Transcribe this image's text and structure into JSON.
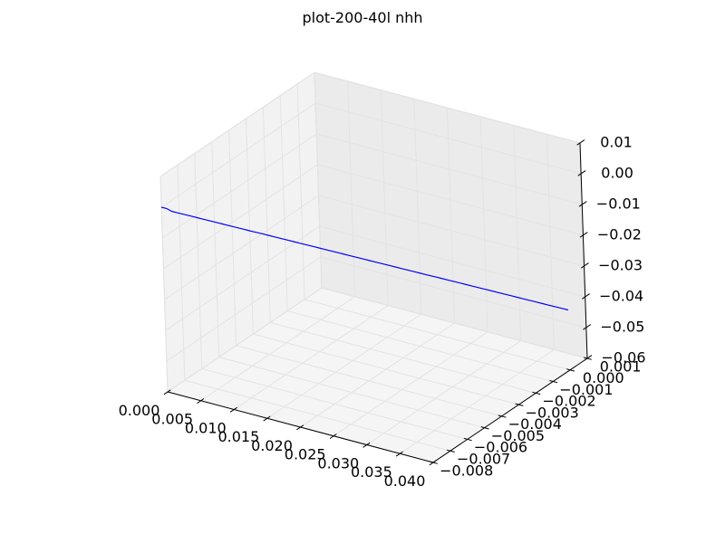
{
  "chart_data": {
    "type": "line3d",
    "title": "plot-200-40l nhh",
    "xlabel": "",
    "ylabel": "",
    "zlabel": "",
    "grid": true,
    "xlim": [
      0.0,
      0.04
    ],
    "ylim": [
      -0.008,
      0.001
    ],
    "zlim": [
      -0.06,
      0.01
    ],
    "x_ticks": [
      0.0,
      0.005,
      0.01,
      0.015,
      0.02,
      0.025,
      0.03,
      0.035,
      0.04
    ],
    "x_tick_labels": [
      "0.000",
      "0.005",
      "0.010",
      "0.015",
      "0.020",
      "0.025",
      "0.030",
      "0.035",
      "0.040"
    ],
    "y_ticks": [
      -0.008,
      -0.007,
      -0.006,
      -0.005,
      -0.004,
      -0.003,
      -0.002,
      -0.001,
      0.0,
      0.001
    ],
    "y_tick_labels": [
      "−0.008",
      "−0.007",
      "−0.006",
      "−0.005",
      "−0.004",
      "−0.003",
      "−0.002",
      "−0.001",
      "0.000",
      "0.001"
    ],
    "z_ticks": [
      -0.06,
      -0.05,
      -0.04,
      -0.03,
      -0.02,
      -0.01,
      0.0,
      0.01
    ],
    "z_tick_labels": [
      "−0.06",
      "−0.05",
      "−0.04",
      "−0.03",
      "−0.02",
      "−0.01",
      "0.00",
      "0.01"
    ],
    "series": [
      {
        "color": "#0000ff",
        "x": [
          0.0,
          0.0005,
          0.001,
          0.0015,
          0.002,
          0.0025,
          0.003,
          0.0035,
          0.004,
          0.0045,
          0.005,
          0.0055,
          0.006,
          0.0065,
          0.007,
          0.0075,
          0.008,
          0.0085,
          0.009,
          0.0095,
          0.01,
          0.0105,
          0.011,
          0.0115,
          0.012,
          0.0125,
          0.013,
          0.0135,
          0.014,
          0.0145,
          0.015,
          0.0155,
          0.016,
          0.0165,
          0.017,
          0.0175,
          0.018,
          0.0185,
          0.019,
          0.0195,
          0.02,
          0.0205,
          0.021,
          0.0215,
          0.022,
          0.0225,
          0.023,
          0.0235,
          0.024,
          0.0245,
          0.025,
          0.0255,
          0.026,
          0.0265,
          0.027,
          0.0275,
          0.028,
          0.0285,
          0.029,
          0.0295,
          0.03,
          0.0305,
          0.031,
          0.0315,
          0.032,
          0.0325,
          0.033,
          0.0335,
          0.034,
          0.0345,
          0.035,
          0.0355,
          0.036,
          0.0365,
          0.037,
          0.0375,
          0.038,
          0.0385,
          0.039,
          0.0395,
          0.04
        ],
        "y": [
          -0.008,
          -0.0079,
          -0.0078,
          -0.0077,
          -0.0076,
          -0.0075,
          -0.0074,
          -0.0073,
          -0.0072,
          -0.0071,
          -0.007,
          -0.0069,
          -0.0068,
          -0.0067,
          -0.0066,
          -0.0065,
          -0.0064,
          -0.0063,
          -0.0062,
          -0.0061,
          -0.006,
          -0.0059,
          -0.0058,
          -0.0057,
          -0.0056,
          -0.0055,
          -0.0054,
          -0.0053,
          -0.0052,
          -0.0051,
          -0.005,
          -0.0049,
          -0.0048,
          -0.0047,
          -0.0046,
          -0.0045,
          -0.0044,
          -0.0043,
          -0.0042,
          -0.0041,
          -0.004,
          -0.0039,
          -0.0038,
          -0.0037,
          -0.0036,
          -0.0035,
          -0.0034,
          -0.0033,
          -0.0032,
          -0.0031,
          -0.003,
          -0.0029,
          -0.0028,
          -0.0027,
          -0.0026,
          -0.0025,
          -0.0024,
          -0.0023,
          -0.0022,
          -0.0021,
          -0.002,
          -0.0019,
          -0.0018,
          -0.0017,
          -0.0016,
          -0.0015,
          -0.0014,
          -0.0013,
          -0.0012,
          -0.0011,
          -0.001,
          -0.0009,
          -0.0008,
          -0.0007,
          -0.0006,
          -0.0005,
          -0.0004,
          -0.0003,
          -0.0002,
          -0.0001,
          0.0
        ],
        "z": [
          0.0,
          -0.0005,
          -0.0015,
          -0.002,
          -0.0025,
          -0.003,
          -0.0035,
          -0.004,
          -0.0045,
          -0.005,
          -0.0055,
          -0.006,
          -0.0065,
          -0.007,
          -0.0075,
          -0.008,
          -0.0085,
          -0.009,
          -0.0095,
          -0.01,
          -0.0105,
          -0.011,
          -0.0115,
          -0.012,
          -0.0125,
          -0.013,
          -0.0135,
          -0.014,
          -0.0145,
          -0.015,
          -0.0155,
          -0.016,
          -0.0165,
          -0.017,
          -0.0175,
          -0.018,
          -0.0185,
          -0.019,
          -0.0195,
          -0.02,
          -0.0205,
          -0.021,
          -0.0215,
          -0.022,
          -0.0225,
          -0.023,
          -0.0235,
          -0.024,
          -0.0245,
          -0.025,
          -0.0255,
          -0.026,
          -0.0265,
          -0.027,
          -0.0275,
          -0.028,
          -0.0285,
          -0.029,
          -0.0295,
          -0.03,
          -0.0305,
          -0.031,
          -0.0315,
          -0.032,
          -0.0325,
          -0.033,
          -0.0335,
          -0.034,
          -0.0345,
          -0.035,
          -0.0355,
          -0.036,
          -0.0365,
          -0.037,
          -0.0375,
          -0.038,
          -0.0385,
          -0.039,
          -0.0395,
          -0.04,
          -0.0405
        ]
      }
    ]
  }
}
